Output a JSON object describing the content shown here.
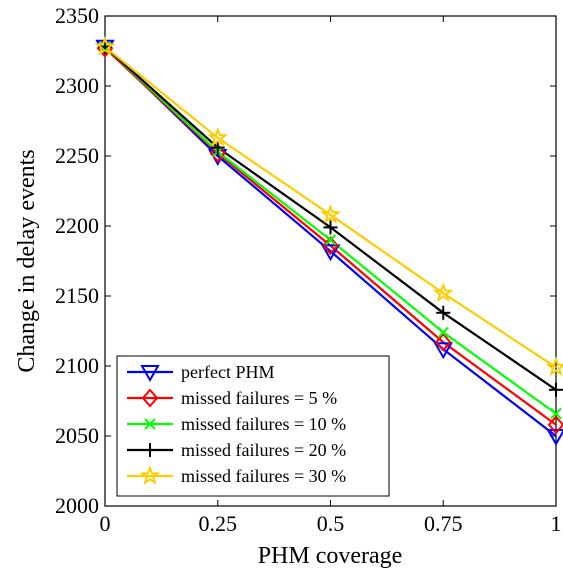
{
  "chart_data": {
    "type": "line",
    "xlabel": "PHM coverage",
    "ylabel": "Change in delay events",
    "x": [
      0,
      0.25,
      0.5,
      0.75,
      1
    ],
    "x_tick_labels": [
      "0",
      "0.25",
      "0.5",
      "0.75",
      "1"
    ],
    "y_tick_labels": [
      "2000",
      "2050",
      "2100",
      "2150",
      "2200",
      "2250",
      "2300",
      "2350"
    ],
    "xlim": [
      0,
      1
    ],
    "ylim": [
      2000,
      2350
    ],
    "grid": false,
    "legend_position": "bottom-left",
    "series": [
      {
        "name": "perfect PHM",
        "color": "#0000ff",
        "marker": "triangle-down",
        "values": [
          2328,
          2250,
          2182,
          2112,
          2050
        ]
      },
      {
        "name": "missed failures = 5 %",
        "color": "#ff0000",
        "marker": "diamond",
        "values": [
          2327,
          2252,
          2186,
          2117,
          2058
        ]
      },
      {
        "name": "missed failures = 10 %",
        "color": "#00ff00",
        "marker": "x",
        "values": [
          2328,
          2253,
          2190,
          2124,
          2066
        ]
      },
      {
        "name": "missed failures = 20 %",
        "color": "#000000",
        "marker": "plus",
        "values": [
          2328,
          2256,
          2199,
          2138,
          2083
        ]
      },
      {
        "name": "missed failures = 30 %",
        "color": "#ffcc00",
        "marker": "star",
        "values": [
          2328,
          2263,
          2208,
          2152,
          2099
        ]
      }
    ]
  }
}
